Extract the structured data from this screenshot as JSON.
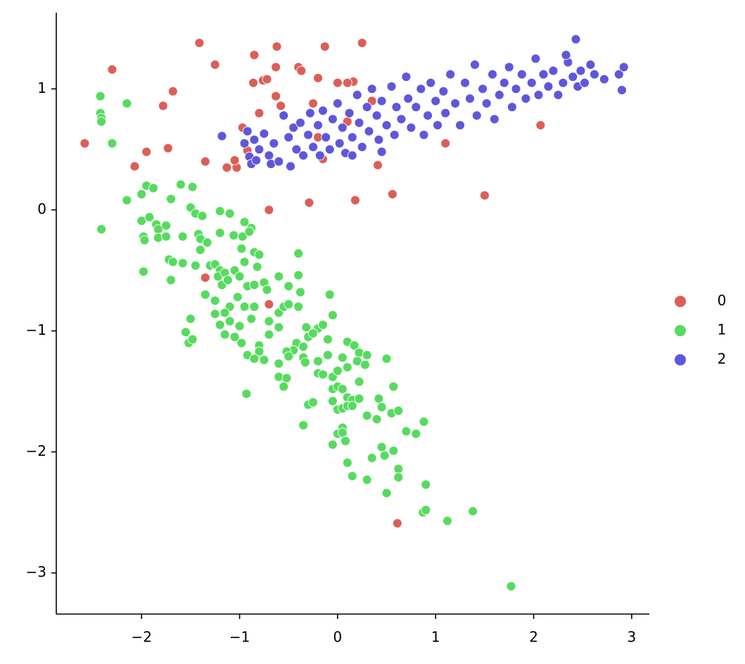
{
  "chart_data": {
    "type": "scatter",
    "xlim": [
      -2.87,
      3.18
    ],
    "ylim": [
      -3.34,
      1.63
    ],
    "xticks": [
      {
        "value": -2,
        "label": "−2"
      },
      {
        "value": -1,
        "label": "−1"
      },
      0,
      1,
      2,
      3
    ],
    "yticks": [
      {
        "value": -3,
        "label": "−3"
      },
      {
        "value": -2,
        "label": "−2"
      },
      {
        "value": -1,
        "label": "−1"
      },
      0,
      1
    ],
    "legend": "right",
    "series": [
      {
        "name": "0",
        "color": "#db5f57",
        "x": [
          -2.58,
          -2.3,
          -1.95,
          -2.07,
          -1.78,
          -1.68,
          -1.73,
          -1.41,
          -1.35,
          -1.25,
          -1.13,
          -1.03,
          -1.05,
          -0.97,
          -0.92,
          -0.86,
          -0.85,
          -0.8,
          -0.76,
          -0.72,
          -0.62,
          -0.63,
          -0.63,
          -0.58,
          -0.4,
          -0.37,
          -0.25,
          -0.2,
          -0.15,
          -0.13,
          0.0,
          0.1,
          0.16,
          0.25,
          0.41,
          0.56,
          0.18,
          -0.29,
          -0.7,
          -1.35,
          -0.7,
          0.61,
          1.5,
          2.07,
          1.1,
          0.1,
          -0.2,
          0.35
        ],
        "values": [
          0.55,
          1.16,
          0.48,
          0.36,
          0.86,
          0.98,
          0.51,
          1.38,
          0.4,
          1.2,
          0.35,
          0.35,
          0.41,
          0.68,
          0.49,
          1.05,
          1.28,
          0.8,
          1.07,
          1.08,
          1.35,
          1.18,
          0.94,
          0.86,
          1.18,
          1.15,
          0.88,
          1.09,
          0.42,
          1.35,
          1.05,
          0.73,
          1.06,
          1.38,
          0.37,
          0.13,
          0.08,
          0.06,
          0.0,
          -0.56,
          -0.78,
          -2.59,
          0.12,
          0.7,
          0.55,
          1.05,
          0.6,
          0.9
        ]
      },
      {
        "name": "1",
        "color": "#57db5f",
        "x": [
          -2.42,
          -2.42,
          -2.41,
          -2.41,
          -2.3,
          -2.15,
          -2.41,
          -2.15,
          -2.0,
          -1.95,
          -1.88,
          -1.6,
          -1.48,
          -1.7,
          -2.0,
          -1.92,
          -1.85,
          -1.83,
          -1.75,
          -1.98,
          -1.97,
          -1.83,
          -1.75,
          -1.58,
          -1.5,
          -1.45,
          -1.38,
          -1.42,
          -1.4,
          -1.33,
          -1.2,
          -1.1,
          -1.2,
          -1.06,
          -0.97,
          -0.95,
          -0.88,
          -0.9,
          -0.85,
          -0.98,
          -0.4,
          -1.98,
          -1.72,
          -1.68,
          -1.58,
          -1.45,
          -1.4,
          -1.3,
          -1.25,
          -1.2,
          -1.22,
          -1.15,
          -1.05,
          -1.0,
          -0.95,
          -0.92,
          -0.85,
          -0.82,
          -0.8,
          -1.7,
          -1.18,
          -1.12,
          -1.35,
          -1.25,
          -1.1,
          -1.15,
          -1.02,
          -0.95,
          -0.85,
          -0.75,
          -0.72,
          -0.6,
          -0.5,
          -0.4,
          -0.38,
          -0.6,
          -0.55,
          -0.5,
          -0.4,
          -0.08,
          -0.05,
          -1.25,
          -1.1,
          -1.2,
          -1.0,
          -0.88,
          -0.7,
          -0.6,
          -1.5,
          -1.55,
          -1.52,
          -1.48,
          -1.15,
          -1.05,
          -0.98,
          -0.8,
          -0.8,
          -0.7,
          -0.32,
          -0.2,
          -0.15,
          -0.3,
          -0.25,
          -0.42,
          -0.45,
          -0.35,
          -0.1,
          0.1,
          0.17,
          0.22,
          -0.92,
          -0.85,
          -0.75,
          -0.6,
          -0.52,
          -0.5,
          -0.35,
          -0.33,
          -0.2,
          -0.1,
          0.05,
          0.2,
          0.3,
          0.28,
          0.5,
          -0.6,
          -0.52,
          -0.55,
          -0.2,
          -0.15,
          -0.05,
          0.0,
          0.1,
          0.22,
          -0.05,
          0.0,
          0.05,
          0.1,
          0.15,
          0.22,
          0.42,
          0.57,
          -0.3,
          -0.25,
          -0.05,
          0.0,
          0.05,
          0.1,
          0.15,
          0.45,
          0.55,
          0.62,
          -0.35,
          0.05,
          0.0,
          0.05,
          0.3,
          0.4,
          0.7,
          0.8,
          0.88,
          -0.05,
          0.08,
          0.35,
          0.45,
          0.48,
          0.57,
          0.1,
          0.15,
          0.3,
          0.62,
          0.62,
          0.5,
          0.9,
          0.87,
          0.9,
          1.12,
          1.38,
          -0.93,
          1.77
        ],
        "values": [
          0.94,
          0.8,
          0.76,
          0.73,
          0.55,
          0.88,
          -0.16,
          0.08,
          0.13,
          0.2,
          0.18,
          0.21,
          0.19,
          0.09,
          -0.09,
          -0.06,
          -0.12,
          -0.16,
          -0.13,
          -0.22,
          -0.25,
          -0.23,
          -0.22,
          -0.22,
          0.02,
          -0.03,
          -0.05,
          -0.2,
          -0.24,
          -0.27,
          -0.01,
          -0.03,
          -0.19,
          -0.21,
          -0.22,
          -0.1,
          -0.15,
          -0.18,
          -0.35,
          -0.32,
          -0.36,
          -0.51,
          -0.41,
          -0.43,
          -0.44,
          -0.46,
          -0.33,
          -0.46,
          -0.45,
          -0.5,
          -0.55,
          -0.52,
          -0.5,
          -0.55,
          -0.43,
          -0.63,
          -0.62,
          -0.47,
          -0.37,
          -0.58,
          -0.62,
          -0.58,
          -0.7,
          -0.75,
          -0.8,
          -0.85,
          -0.72,
          -0.8,
          -0.8,
          -0.6,
          -0.66,
          -0.55,
          -0.63,
          -0.54,
          -0.68,
          -0.85,
          -0.8,
          -0.78,
          -0.8,
          -0.7,
          -0.87,
          -0.86,
          -0.92,
          -0.95,
          -0.96,
          -0.9,
          -0.92,
          -0.97,
          -0.9,
          -1.01,
          -1.1,
          -1.07,
          -1.03,
          -1.05,
          -1.1,
          -1.12,
          -1.17,
          -1.03,
          -0.97,
          -0.98,
          -0.95,
          -1.05,
          -1.02,
          -1.1,
          -1.16,
          -1.13,
          -1.07,
          -1.09,
          -1.12,
          -1.18,
          -1.2,
          -1.23,
          -1.24,
          -1.27,
          -1.17,
          -1.21,
          -1.22,
          -1.26,
          -1.25,
          -1.2,
          -1.22,
          -1.25,
          -1.2,
          -1.28,
          -1.23,
          -1.38,
          -1.39,
          -1.46,
          -1.35,
          -1.36,
          -1.38,
          -1.33,
          -1.3,
          -1.42,
          -1.48,
          -1.46,
          -1.48,
          -1.55,
          -1.57,
          -1.56,
          -1.56,
          -1.46,
          -1.61,
          -1.59,
          -1.58,
          -1.65,
          -1.64,
          -1.62,
          -1.62,
          -1.63,
          -1.68,
          -1.66,
          -1.78,
          -1.8,
          -1.85,
          -1.84,
          -1.7,
          -1.73,
          -1.83,
          -1.85,
          -1.75,
          -1.94,
          -1.91,
          -2.05,
          -1.96,
          -2.03,
          -1.99,
          -2.09,
          -2.2,
          -2.23,
          -2.14,
          -2.21,
          -2.34,
          -2.27,
          -2.5,
          -2.48,
          -2.57,
          -2.49,
          -1.52,
          -3.11
        ]
      },
      {
        "name": "2",
        "color": "#5f57db",
        "x": [
          -1.18,
          -0.92,
          -0.9,
          -0.88,
          -0.85,
          -0.83,
          -0.8,
          -0.75,
          -0.7,
          -0.68,
          -0.65,
          -0.6,
          -0.55,
          -0.5,
          -0.48,
          -0.45,
          -0.42,
          -0.38,
          -0.35,
          -0.3,
          -0.28,
          -0.25,
          -0.2,
          -0.18,
          -0.15,
          -0.12,
          -0.08,
          -0.05,
          0.0,
          0.02,
          0.05,
          0.08,
          0.12,
          0.15,
          0.2,
          0.22,
          0.25,
          0.3,
          0.32,
          0.35,
          0.4,
          0.42,
          0.45,
          0.5,
          0.55,
          0.58,
          0.6,
          0.65,
          0.7,
          0.72,
          0.75,
          0.8,
          0.85,
          0.88,
          0.92,
          0.95,
          1.0,
          1.02,
          1.08,
          1.1,
          1.15,
          1.2,
          1.25,
          1.3,
          1.35,
          1.4,
          1.42,
          1.48,
          1.52,
          1.58,
          1.6,
          1.65,
          1.7,
          1.75,
          1.78,
          1.82,
          1.88,
          1.92,
          1.98,
          2.02,
          2.05,
          2.1,
          2.15,
          2.2,
          2.25,
          2.3,
          2.35,
          2.4,
          2.43,
          2.45,
          2.48,
          2.52,
          2.58,
          2.62,
          2.72,
          2.87,
          2.9,
          2.92,
          2.33,
          0.15,
          0.45,
          -0.95
        ],
        "values": [
          0.61,
          0.65,
          0.44,
          0.38,
          0.58,
          0.41,
          0.5,
          0.63,
          0.45,
          0.38,
          0.55,
          0.4,
          0.78,
          0.6,
          0.36,
          0.68,
          0.5,
          0.72,
          0.45,
          0.62,
          0.8,
          0.52,
          0.7,
          0.45,
          0.82,
          0.6,
          0.5,
          0.75,
          0.88,
          0.55,
          0.68,
          0.47,
          0.8,
          0.6,
          0.95,
          0.72,
          0.52,
          0.85,
          0.65,
          1.0,
          0.78,
          0.58,
          0.9,
          0.7,
          1.02,
          0.62,
          0.85,
          0.75,
          1.1,
          0.92,
          0.68,
          0.85,
          1.0,
          0.62,
          0.78,
          1.05,
          0.9,
          0.7,
          0.98,
          0.8,
          1.12,
          0.88,
          0.7,
          1.05,
          0.92,
          1.2,
          0.78,
          1.0,
          0.88,
          1.12,
          0.75,
          0.95,
          1.05,
          1.18,
          0.85,
          1.0,
          1.12,
          0.92,
          1.05,
          1.25,
          0.95,
          1.12,
          1.02,
          1.15,
          0.95,
          1.05,
          1.22,
          1.1,
          1.41,
          1.02,
          1.15,
          1.05,
          1.2,
          1.12,
          1.08,
          1.12,
          0.99,
          1.18,
          1.28,
          0.45,
          0.48,
          0.55
        ]
      }
    ]
  }
}
